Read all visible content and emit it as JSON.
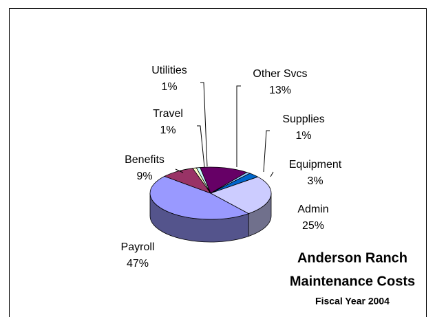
{
  "chart_data": {
    "type": "pie3d",
    "title": [
      "Anderson Ranch",
      "Maintenance Costs"
    ],
    "subtitle": "Fiscal Year 2004",
    "categories": [
      "Other Svcs",
      "Supplies",
      "Equipment",
      "Admin",
      "Payroll",
      "Benefits",
      "Travel",
      "Utilities"
    ],
    "values": [
      13,
      1,
      3,
      25,
      47,
      9,
      1,
      1
    ],
    "value_labels": [
      "13%",
      "1%",
      "3%",
      "25%",
      "47%",
      "9%",
      "1%",
      "1%"
    ],
    "colors": [
      "#660066",
      "#99ccff",
      "#0066cc",
      "#ccccff",
      "#9999ff",
      "#993366",
      "#ffffcc",
      "#ccffff"
    ]
  }
}
